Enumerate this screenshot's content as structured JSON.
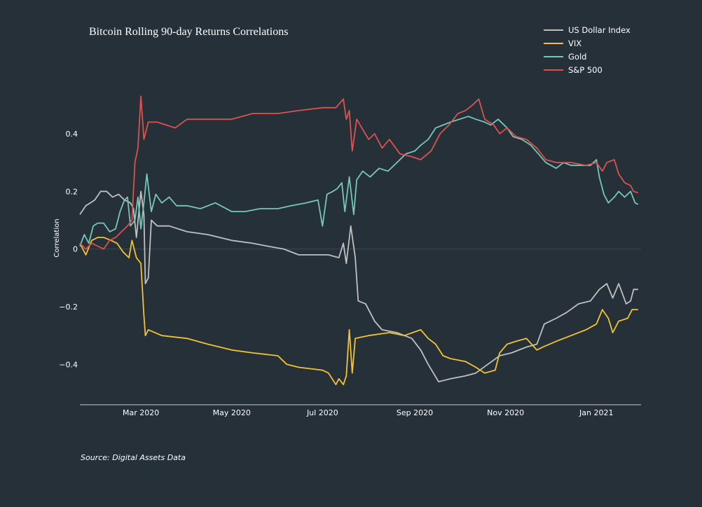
{
  "chart_data": {
    "type": "line",
    "title": "Bitcoin Rolling 90-day Returns Correlations",
    "xlabel": "",
    "ylabel": "Correlation",
    "x_range": [
      "2020-01-20",
      "2021-01-31"
    ],
    "ylim": [
      -0.54,
      0.56
    ],
    "y_ticks": [
      0.4,
      0.2,
      0,
      -0.2,
      -0.4
    ],
    "y_tick_labels": [
      "0.4",
      "0.2",
      "0",
      "−0.2",
      "−0.4"
    ],
    "x_ticks": [
      {
        "date": "2020-03-01",
        "label": "Mar 2020"
      },
      {
        "date": "2020-05-01",
        "label": "May 2020"
      },
      {
        "date": "2020-07-01",
        "label": "Jul 2020"
      },
      {
        "date": "2020-09-01",
        "label": "Sep 2020"
      },
      {
        "date": "2020-11-01",
        "label": "Nov 2020"
      },
      {
        "date": "2021-01-01",
        "label": "Jan 2021"
      }
    ],
    "grid": false,
    "legend_position": "top-right",
    "source": "Source: Digital Assets Data",
    "series": [
      {
        "name": "US Dollar Index",
        "color": "#c0c0c0",
        "points": [
          [
            "2020-01-20",
            0.12
          ],
          [
            "2020-01-24",
            0.15
          ],
          [
            "2020-01-27",
            0.16
          ],
          [
            "2020-01-30",
            0.17
          ],
          [
            "2020-02-03",
            0.2
          ],
          [
            "2020-02-07",
            0.2
          ],
          [
            "2020-02-11",
            0.18
          ],
          [
            "2020-02-15",
            0.19
          ],
          [
            "2020-02-19",
            0.17
          ],
          [
            "2020-02-23",
            0.16
          ],
          [
            "2020-02-25",
            0.14
          ],
          [
            "2020-02-27",
            0.04
          ],
          [
            "2020-03-01",
            0.2
          ],
          [
            "2020-03-03",
            0.12
          ],
          [
            "2020-03-04",
            -0.12
          ],
          [
            "2020-03-06",
            -0.1
          ],
          [
            "2020-03-08",
            0.1
          ],
          [
            "2020-03-12",
            0.08
          ],
          [
            "2020-03-20",
            0.08
          ],
          [
            "2020-04-01",
            0.06
          ],
          [
            "2020-04-15",
            0.05
          ],
          [
            "2020-05-01",
            0.03
          ],
          [
            "2020-05-15",
            0.02
          ],
          [
            "2020-05-25",
            0.01
          ],
          [
            "2020-06-05",
            0.0
          ],
          [
            "2020-06-15",
            -0.02
          ],
          [
            "2020-06-25",
            -0.02
          ],
          [
            "2020-07-05",
            -0.02
          ],
          [
            "2020-07-12",
            -0.03
          ],
          [
            "2020-07-15",
            0.02
          ],
          [
            "2020-07-17",
            -0.05
          ],
          [
            "2020-07-20",
            0.08
          ],
          [
            "2020-07-23",
            -0.03
          ],
          [
            "2020-07-25",
            -0.18
          ],
          [
            "2020-07-30",
            -0.19
          ],
          [
            "2020-08-05",
            -0.25
          ],
          [
            "2020-08-10",
            -0.28
          ],
          [
            "2020-08-20",
            -0.29
          ],
          [
            "2020-08-30",
            -0.31
          ],
          [
            "2020-09-05",
            -0.35
          ],
          [
            "2020-09-10",
            -0.4
          ],
          [
            "2020-09-17",
            -0.46
          ],
          [
            "2020-09-25",
            -0.45
          ],
          [
            "2020-10-05",
            -0.44
          ],
          [
            "2020-10-12",
            -0.43
          ],
          [
            "2020-10-20",
            -0.4
          ],
          [
            "2020-10-28",
            -0.37
          ],
          [
            "2020-11-05",
            -0.36
          ],
          [
            "2020-11-15",
            -0.34
          ],
          [
            "2020-11-22",
            -0.33
          ],
          [
            "2020-11-27",
            -0.26
          ],
          [
            "2020-12-05",
            -0.24
          ],
          [
            "2020-12-12",
            -0.22
          ],
          [
            "2020-12-20",
            -0.19
          ],
          [
            "2020-12-28",
            -0.18
          ],
          [
            "2021-01-03",
            -0.14
          ],
          [
            "2021-01-08",
            -0.12
          ],
          [
            "2021-01-12",
            -0.17
          ],
          [
            "2021-01-16",
            -0.12
          ],
          [
            "2021-01-21",
            -0.19
          ],
          [
            "2021-01-24",
            -0.18
          ],
          [
            "2021-01-26",
            -0.14
          ],
          [
            "2021-01-29",
            -0.14
          ]
        ]
      },
      {
        "name": "VIX",
        "color": "#f1c232",
        "points": [
          [
            "2020-01-20",
            0.02
          ],
          [
            "2020-01-24",
            -0.02
          ],
          [
            "2020-01-28",
            0.03
          ],
          [
            "2020-02-01",
            0.04
          ],
          [
            "2020-02-05",
            0.04
          ],
          [
            "2020-02-10",
            0.03
          ],
          [
            "2020-02-14",
            0.02
          ],
          [
            "2020-02-18",
            -0.01
          ],
          [
            "2020-02-22",
            -0.03
          ],
          [
            "2020-02-24",
            0.03
          ],
          [
            "2020-02-27",
            -0.03
          ],
          [
            "2020-03-01",
            -0.05
          ],
          [
            "2020-03-03",
            -0.23
          ],
          [
            "2020-03-04",
            -0.3
          ],
          [
            "2020-03-06",
            -0.28
          ],
          [
            "2020-03-15",
            -0.3
          ],
          [
            "2020-04-01",
            -0.31
          ],
          [
            "2020-04-15",
            -0.33
          ],
          [
            "2020-05-01",
            -0.35
          ],
          [
            "2020-05-15",
            -0.36
          ],
          [
            "2020-06-01",
            -0.37
          ],
          [
            "2020-06-07",
            -0.4
          ],
          [
            "2020-06-15",
            -0.41
          ],
          [
            "2020-07-01",
            -0.42
          ],
          [
            "2020-07-05",
            -0.43
          ],
          [
            "2020-07-10",
            -0.47
          ],
          [
            "2020-07-12",
            -0.45
          ],
          [
            "2020-07-15",
            -0.47
          ],
          [
            "2020-07-17",
            -0.44
          ],
          [
            "2020-07-19",
            -0.28
          ],
          [
            "2020-07-21",
            -0.43
          ],
          [
            "2020-07-23",
            -0.31
          ],
          [
            "2020-08-01",
            -0.3
          ],
          [
            "2020-08-15",
            -0.29
          ],
          [
            "2020-08-25",
            -0.3
          ],
          [
            "2020-09-05",
            -0.28
          ],
          [
            "2020-09-10",
            -0.31
          ],
          [
            "2020-09-15",
            -0.33
          ],
          [
            "2020-09-20",
            -0.37
          ],
          [
            "2020-09-25",
            -0.38
          ],
          [
            "2020-10-05",
            -0.39
          ],
          [
            "2020-10-12",
            -0.41
          ],
          [
            "2020-10-18",
            -0.43
          ],
          [
            "2020-10-25",
            -0.42
          ],
          [
            "2020-10-28",
            -0.36
          ],
          [
            "2020-11-02",
            -0.33
          ],
          [
            "2020-11-08",
            -0.32
          ],
          [
            "2020-11-15",
            -0.31
          ],
          [
            "2020-11-22",
            -0.35
          ],
          [
            "2020-11-26",
            -0.34
          ],
          [
            "2020-12-05",
            -0.32
          ],
          [
            "2020-12-15",
            -0.3
          ],
          [
            "2020-12-25",
            -0.28
          ],
          [
            "2021-01-01",
            -0.26
          ],
          [
            "2021-01-05",
            -0.21
          ],
          [
            "2021-01-09",
            -0.24
          ],
          [
            "2021-01-12",
            -0.29
          ],
          [
            "2021-01-16",
            -0.25
          ],
          [
            "2021-01-22",
            -0.24
          ],
          [
            "2021-01-25",
            -0.21
          ],
          [
            "2021-01-29",
            -0.21
          ]
        ]
      },
      {
        "name": "Gold",
        "color": "#76c7b7",
        "points": [
          [
            "2020-01-20",
            0.01
          ],
          [
            "2020-01-23",
            0.05
          ],
          [
            "2020-01-26",
            0.02
          ],
          [
            "2020-01-29",
            0.08
          ],
          [
            "2020-02-01",
            0.09
          ],
          [
            "2020-02-05",
            0.09
          ],
          [
            "2020-02-09",
            0.06
          ],
          [
            "2020-02-13",
            0.07
          ],
          [
            "2020-02-16",
            0.13
          ],
          [
            "2020-02-19",
            0.17
          ],
          [
            "2020-02-21",
            0.18
          ],
          [
            "2020-02-23",
            0.08
          ],
          [
            "2020-02-26",
            0.1
          ],
          [
            "2020-02-28",
            0.18
          ],
          [
            "2020-03-01",
            0.07
          ],
          [
            "2020-03-03",
            0.16
          ],
          [
            "2020-03-05",
            0.26
          ],
          [
            "2020-03-08",
            0.13
          ],
          [
            "2020-03-11",
            0.19
          ],
          [
            "2020-03-15",
            0.16
          ],
          [
            "2020-03-20",
            0.18
          ],
          [
            "2020-03-25",
            0.15
          ],
          [
            "2020-04-01",
            0.15
          ],
          [
            "2020-04-10",
            0.14
          ],
          [
            "2020-04-20",
            0.16
          ],
          [
            "2020-05-01",
            0.13
          ],
          [
            "2020-05-10",
            0.13
          ],
          [
            "2020-05-20",
            0.14
          ],
          [
            "2020-06-01",
            0.14
          ],
          [
            "2020-06-10",
            0.15
          ],
          [
            "2020-06-20",
            0.16
          ],
          [
            "2020-06-28",
            0.17
          ],
          [
            "2020-07-01",
            0.08
          ],
          [
            "2020-07-04",
            0.19
          ],
          [
            "2020-07-08",
            0.2
          ],
          [
            "2020-07-11",
            0.21
          ],
          [
            "2020-07-14",
            0.23
          ],
          [
            "2020-07-16",
            0.13
          ],
          [
            "2020-07-19",
            0.25
          ],
          [
            "2020-07-22",
            0.12
          ],
          [
            "2020-07-24",
            0.24
          ],
          [
            "2020-07-28",
            0.27
          ],
          [
            "2020-08-02",
            0.25
          ],
          [
            "2020-08-08",
            0.28
          ],
          [
            "2020-08-14",
            0.27
          ],
          [
            "2020-08-20",
            0.3
          ],
          [
            "2020-08-26",
            0.33
          ],
          [
            "2020-09-01",
            0.34
          ],
          [
            "2020-09-05",
            0.36
          ],
          [
            "2020-09-10",
            0.38
          ],
          [
            "2020-09-15",
            0.42
          ],
          [
            "2020-09-20",
            0.43
          ],
          [
            "2020-09-25",
            0.44
          ],
          [
            "2020-10-01",
            0.45
          ],
          [
            "2020-10-07",
            0.46
          ],
          [
            "2020-10-12",
            0.45
          ],
          [
            "2020-10-18",
            0.44
          ],
          [
            "2020-10-22",
            0.43
          ],
          [
            "2020-10-27",
            0.45
          ],
          [
            "2020-11-02",
            0.42
          ],
          [
            "2020-11-06",
            0.39
          ],
          [
            "2020-11-12",
            0.38
          ],
          [
            "2020-11-18",
            0.36
          ],
          [
            "2020-11-23",
            0.33
          ],
          [
            "2020-11-28",
            0.3
          ],
          [
            "2020-12-05",
            0.28
          ],
          [
            "2020-12-10",
            0.3
          ],
          [
            "2020-12-15",
            0.29
          ],
          [
            "2020-12-22",
            0.29
          ],
          [
            "2020-12-28",
            0.29
          ],
          [
            "2021-01-01",
            0.31
          ],
          [
            "2021-01-03",
            0.25
          ],
          [
            "2021-01-06",
            0.19
          ],
          [
            "2021-01-09",
            0.16
          ],
          [
            "2021-01-13",
            0.18
          ],
          [
            "2021-01-16",
            0.2
          ],
          [
            "2021-01-20",
            0.18
          ],
          [
            "2021-01-24",
            0.2
          ],
          [
            "2021-01-27",
            0.16
          ],
          [
            "2021-01-29",
            0.155
          ]
        ]
      },
      {
        "name": "S&P 500",
        "color": "#d9534f",
        "points": [
          [
            "2020-01-20",
            0.02
          ],
          [
            "2020-01-24",
            0.0
          ],
          [
            "2020-01-28",
            0.02
          ],
          [
            "2020-02-01",
            0.01
          ],
          [
            "2020-02-05",
            0.0
          ],
          [
            "2020-02-09",
            0.03
          ],
          [
            "2020-02-13",
            0.04
          ],
          [
            "2020-02-17",
            0.06
          ],
          [
            "2020-02-21",
            0.08
          ],
          [
            "2020-02-24",
            0.1
          ],
          [
            "2020-02-26",
            0.3
          ],
          [
            "2020-02-28",
            0.35
          ],
          [
            "2020-03-01",
            0.53
          ],
          [
            "2020-03-03",
            0.38
          ],
          [
            "2020-03-06",
            0.44
          ],
          [
            "2020-03-12",
            0.44
          ],
          [
            "2020-03-18",
            0.43
          ],
          [
            "2020-03-24",
            0.42
          ],
          [
            "2020-04-01",
            0.45
          ],
          [
            "2020-04-15",
            0.45
          ],
          [
            "2020-05-01",
            0.45
          ],
          [
            "2020-05-15",
            0.47
          ],
          [
            "2020-06-01",
            0.47
          ],
          [
            "2020-06-15",
            0.48
          ],
          [
            "2020-07-01",
            0.49
          ],
          [
            "2020-07-10",
            0.49
          ],
          [
            "2020-07-15",
            0.52
          ],
          [
            "2020-07-17",
            0.45
          ],
          [
            "2020-07-19",
            0.48
          ],
          [
            "2020-07-21",
            0.34
          ],
          [
            "2020-07-24",
            0.45
          ],
          [
            "2020-08-01",
            0.38
          ],
          [
            "2020-08-05",
            0.4
          ],
          [
            "2020-08-10",
            0.35
          ],
          [
            "2020-08-15",
            0.38
          ],
          [
            "2020-08-22",
            0.33
          ],
          [
            "2020-08-30",
            0.32
          ],
          [
            "2020-09-05",
            0.31
          ],
          [
            "2020-09-12",
            0.34
          ],
          [
            "2020-09-18",
            0.4
          ],
          [
            "2020-09-24",
            0.43
          ],
          [
            "2020-09-30",
            0.47
          ],
          [
            "2020-10-05",
            0.48
          ],
          [
            "2020-10-10",
            0.5
          ],
          [
            "2020-10-14",
            0.52
          ],
          [
            "2020-10-18",
            0.45
          ],
          [
            "2020-10-24",
            0.43
          ],
          [
            "2020-10-28",
            0.4
          ],
          [
            "2020-11-02",
            0.42
          ],
          [
            "2020-11-08",
            0.39
          ],
          [
            "2020-11-15",
            0.38
          ],
          [
            "2020-11-22",
            0.35
          ],
          [
            "2020-11-28",
            0.31
          ],
          [
            "2020-12-05",
            0.3
          ],
          [
            "2020-12-15",
            0.3
          ],
          [
            "2020-12-25",
            0.29
          ],
          [
            "2021-01-01",
            0.3
          ],
          [
            "2021-01-05",
            0.27
          ],
          [
            "2021-01-08",
            0.3
          ],
          [
            "2021-01-13",
            0.31
          ],
          [
            "2021-01-16",
            0.26
          ],
          [
            "2021-01-20",
            0.23
          ],
          [
            "2021-01-24",
            0.22
          ],
          [
            "2021-01-26",
            0.2
          ],
          [
            "2021-01-29",
            0.195
          ]
        ]
      }
    ]
  }
}
